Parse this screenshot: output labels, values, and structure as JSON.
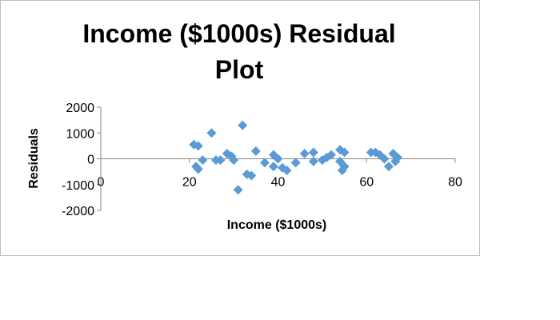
{
  "chart_data": {
    "type": "scatter",
    "title_lines": [
      "Income ($1000s)  Residual",
      "Plot"
    ],
    "xlabel": "Income ($1000s)",
    "ylabel": "Residuals",
    "xlim": [
      0,
      80
    ],
    "ylim": [
      -2000,
      2000
    ],
    "x_ticks": [
      0,
      20,
      40,
      60,
      80
    ],
    "y_ticks": [
      2000,
      1000,
      0,
      -1000,
      -2000
    ],
    "x_tick_labels": [
      "0",
      "20",
      "40",
      "60",
      "80"
    ],
    "y_tick_labels": [
      "2000",
      "1000",
      "0",
      "-1000",
      "-2000"
    ],
    "grid": false,
    "marker": "diamond",
    "marker_color": "#5b9bd5",
    "series": [
      {
        "x": [
          21.0,
          21.5,
          22.0,
          22.0,
          23.0,
          25.0,
          26.0,
          27.0,
          28.5,
          29.5,
          30.0,
          31.0,
          32.0,
          33.0,
          34.0,
          35.0,
          37.0,
          39.0,
          39.0,
          40.0,
          41.0,
          42.0,
          44.0,
          46.0,
          48.0,
          48.0,
          50.0,
          51.0,
          52.0,
          54.0,
          54.0,
          54.5,
          55.0,
          55.0,
          61.0,
          62.0,
          63.0,
          64.0,
          65.0,
          66.0,
          66.5,
          67.0
        ],
        "y": [
          550,
          -300,
          500,
          -400,
          -50,
          1000,
          -50,
          -50,
          200,
          100,
          -50,
          -1200,
          1300,
          -600,
          -650,
          300,
          -150,
          150,
          -300,
          0,
          -350,
          -450,
          -150,
          200,
          250,
          -100,
          -50,
          50,
          150,
          350,
          -100,
          -450,
          250,
          -300,
          250,
          250,
          150,
          0,
          -300,
          200,
          -100,
          50
        ]
      }
    ]
  }
}
